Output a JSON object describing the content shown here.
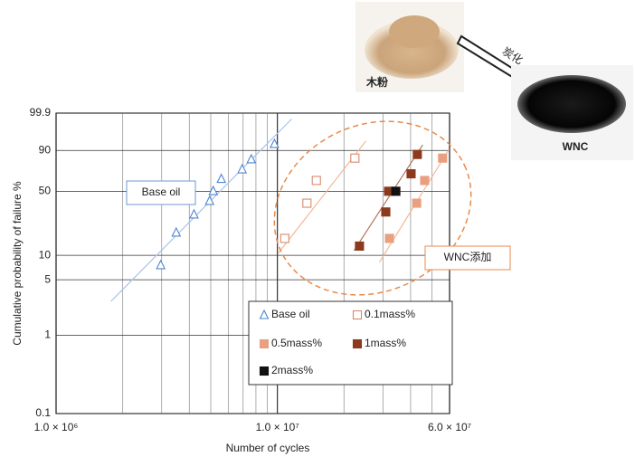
{
  "chart_data": {
    "type": "weibull",
    "xlabel": "Number of cycles",
    "ylabel": "Cumulative probability of failure %",
    "xscale": "log",
    "yscale": "weibull",
    "xlim": [
      1000000,
      60000000
    ],
    "ylim": [
      0.1,
      99.9
    ],
    "xticks": [
      {
        "value": 1000000,
        "label": "1.0 × 10⁶"
      },
      {
        "value": 10000000,
        "label": "1.0 × 10⁷"
      },
      {
        "value": 60000000,
        "label": "6.0 × 10⁷"
      }
    ],
    "xgrid": [
      2000000,
      3000000,
      4000000,
      5000000,
      6000000,
      7000000,
      8000000,
      9000000,
      20000000,
      30000000,
      40000000,
      50000000
    ],
    "yticks": [
      99.9,
      90,
      50,
      10,
      5,
      1,
      0.1
    ],
    "grid": true,
    "series": [
      {
        "name": "Base oil",
        "color": "#4f86d0",
        "marker": "triangle",
        "filled": false,
        "x": [
          2970000,
          3490000,
          4200000,
          4940000,
          5130000,
          5580000,
          6930000,
          7620000,
          9700000
        ],
        "values": [
          7.6,
          18.6,
          29.6,
          40.7,
          50.3,
          63.2,
          73.4,
          83.1,
          93.9
        ],
        "fit": {
          "color": "#a9c3ea",
          "x": [
            1770000,
            11600000
          ],
          "values": [
            2.68,
            99.7
          ]
        }
      },
      {
        "name": "0.1mass%",
        "color": "#d9896a",
        "marker": "square",
        "filled": false,
        "x": [
          10800000,
          13600000,
          15000000,
          22400000
        ],
        "values": [
          15.9,
          38.6,
          61.4,
          84.1
        ],
        "fit": {
          "color": "#f2b898",
          "x": [
            10100000,
            25100000
          ],
          "values": [
            10.6,
            95.2
          ]
        }
      },
      {
        "name": "0.5mass%",
        "color": "#e9a080",
        "marker": "square",
        "filled": true,
        "x": [
          32100000,
          42600000,
          46300000,
          55800000
        ],
        "values": [
          15.9,
          38.6,
          61.4,
          84.1
        ],
        "fit": {
          "color": "#f2b898",
          "x": [
            28900000,
            59700000
          ],
          "values": [
            8.2,
            90.8
          ]
        }
      },
      {
        "name": "1mass%",
        "color": "#8b3a1e",
        "marker": "square",
        "filled": true,
        "x": [
          23500000,
          30900000,
          31800000,
          40200000,
          42900000
        ],
        "values": [
          12.9,
          31.4,
          50,
          68.6,
          87.1
        ],
        "fit": {
          "color": "#b5755a",
          "x": [
            22200000,
            45400000
          ],
          "values": [
            11.4,
            93.4
          ]
        }
      },
      {
        "name": "2mass%",
        "color": "#111111",
        "marker": "square",
        "filled": true,
        "x": [
          34300000
        ],
        "values": [
          50
        ]
      }
    ],
    "annotations": [
      {
        "text": "Base oil",
        "color": "#3f74c0"
      },
      {
        "text": "WNC添加",
        "color": "#e07a3a"
      }
    ],
    "pictures": {
      "wood": "木粉",
      "arrow": "炭化",
      "carbon": "WNC"
    }
  }
}
